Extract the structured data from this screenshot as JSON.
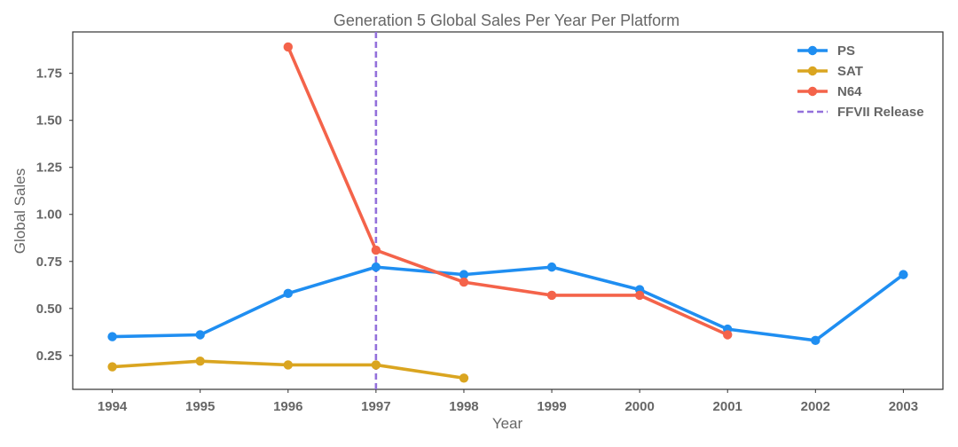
{
  "chart_data": {
    "type": "line",
    "title": "Generation 5 Global Sales Per Year Per Platform",
    "xlabel": "Year",
    "ylabel": "Global Sales",
    "x": [
      1994,
      1995,
      1996,
      1997,
      1998,
      1999,
      2000,
      2001,
      2002,
      2003
    ],
    "xlim": [
      1993.55,
      2003.45
    ],
    "ylim": [
      0.07,
      1.97
    ],
    "yticks": [
      0.25,
      0.5,
      0.75,
      1.0,
      1.25,
      1.5,
      1.75
    ],
    "yticklabels": [
      "0.25",
      "0.50",
      "0.75",
      "1.00",
      "1.25",
      "1.50",
      "1.75"
    ],
    "grid": false,
    "legend_position": "top-right",
    "series": [
      {
        "name": "PS",
        "color": "#1f8ef1",
        "x": [
          1994,
          1995,
          1996,
          1997,
          1998,
          1999,
          2000,
          2001,
          2002,
          2003
        ],
        "values": [
          0.35,
          0.36,
          0.58,
          0.72,
          0.68,
          0.72,
          0.6,
          0.39,
          0.33,
          0.68
        ]
      },
      {
        "name": "SAT",
        "color": "#daa520",
        "x": [
          1994,
          1995,
          1996,
          1997,
          1998
        ],
        "values": [
          0.19,
          0.22,
          0.2,
          0.2,
          0.13
        ]
      },
      {
        "name": "N64",
        "color": "#f4634a",
        "x": [
          1996,
          1997,
          1998,
          1999,
          2000,
          2001
        ],
        "values": [
          1.89,
          0.81,
          0.64,
          0.57,
          0.57,
          0.36
        ]
      }
    ],
    "annotations": [
      {
        "type": "vline",
        "x": 1997,
        "label": "FFVII Release",
        "color": "#9370db",
        "style": "dashed"
      }
    ]
  }
}
